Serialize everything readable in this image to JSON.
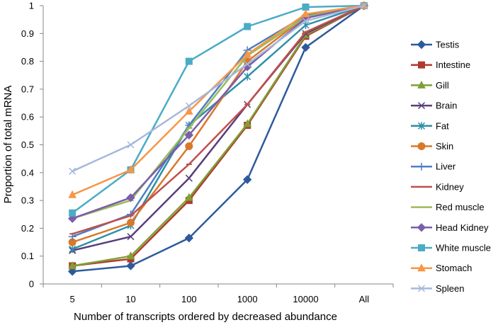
{
  "chart_data": {
    "type": "line",
    "title": "",
    "xlabel": "Number of transcripts ordered by decreased abundance",
    "ylabel": "Proportion of total mRNA",
    "categories": [
      "5",
      "10",
      "100",
      "1000",
      "10000",
      "All"
    ],
    "ylim": [
      0,
      1
    ],
    "yticks": [
      "0",
      "0.1",
      "0.2",
      "0.3",
      "0.4",
      "0.5",
      "0.6",
      "0.7",
      "0.8",
      "0.9",
      "1"
    ],
    "grid": false,
    "legend_position": "right",
    "series": [
      {
        "name": "Testis",
        "color": "#2E5A9C",
        "marker": "diamond",
        "values": [
          0.045,
          0.065,
          0.165,
          0.375,
          0.85,
          1.0
        ]
      },
      {
        "name": "Intestine",
        "color": "#B03A2E",
        "marker": "square",
        "values": [
          0.065,
          0.09,
          0.3,
          0.57,
          0.89,
          1.0
        ]
      },
      {
        "name": "Gill",
        "color": "#7FA035",
        "marker": "triangle",
        "values": [
          0.065,
          0.1,
          0.31,
          0.575,
          0.895,
          1.0
        ]
      },
      {
        "name": "Brain",
        "color": "#5A3D7A",
        "marker": "x",
        "values": [
          0.12,
          0.17,
          0.38,
          0.645,
          0.9,
          1.0
        ]
      },
      {
        "name": "Fat",
        "color": "#2E8FA6",
        "marker": "asterisk",
        "values": [
          0.125,
          0.21,
          0.57,
          0.745,
          0.93,
          1.0
        ]
      },
      {
        "name": "Skin",
        "color": "#D9782A",
        "marker": "circle",
        "values": [
          0.15,
          0.22,
          0.495,
          0.8,
          0.96,
          1.0
        ]
      },
      {
        "name": "Liver",
        "color": "#4C7EC4",
        "marker": "plus",
        "values": [
          0.17,
          0.25,
          0.57,
          0.84,
          0.965,
          1.0
        ]
      },
      {
        "name": "Kidney",
        "color": "#C0504D",
        "marker": "line",
        "values": [
          0.18,
          0.245,
          0.43,
          0.645,
          0.905,
          1.0
        ]
      },
      {
        "name": "Red muscle",
        "color": "#9BBB59",
        "marker": "line",
        "values": [
          0.235,
          0.3,
          0.56,
          0.82,
          0.96,
          1.0
        ]
      },
      {
        "name": "Head Kidney",
        "color": "#7B5EA7",
        "marker": "diamond",
        "values": [
          0.235,
          0.31,
          0.535,
          0.78,
          0.955,
          1.0
        ]
      },
      {
        "name": "White muscle",
        "color": "#4BACC6",
        "marker": "square",
        "values": [
          0.255,
          0.41,
          0.8,
          0.925,
          0.995,
          1.0
        ]
      },
      {
        "name": "Stomach",
        "color": "#F79646",
        "marker": "triangle",
        "values": [
          0.32,
          0.41,
          0.62,
          0.825,
          0.97,
          1.0
        ]
      },
      {
        "name": "Spleen",
        "color": "#A5B8DC",
        "marker": "x",
        "values": [
          0.405,
          0.5,
          0.64,
          0.79,
          0.945,
          1.0
        ]
      }
    ]
  }
}
